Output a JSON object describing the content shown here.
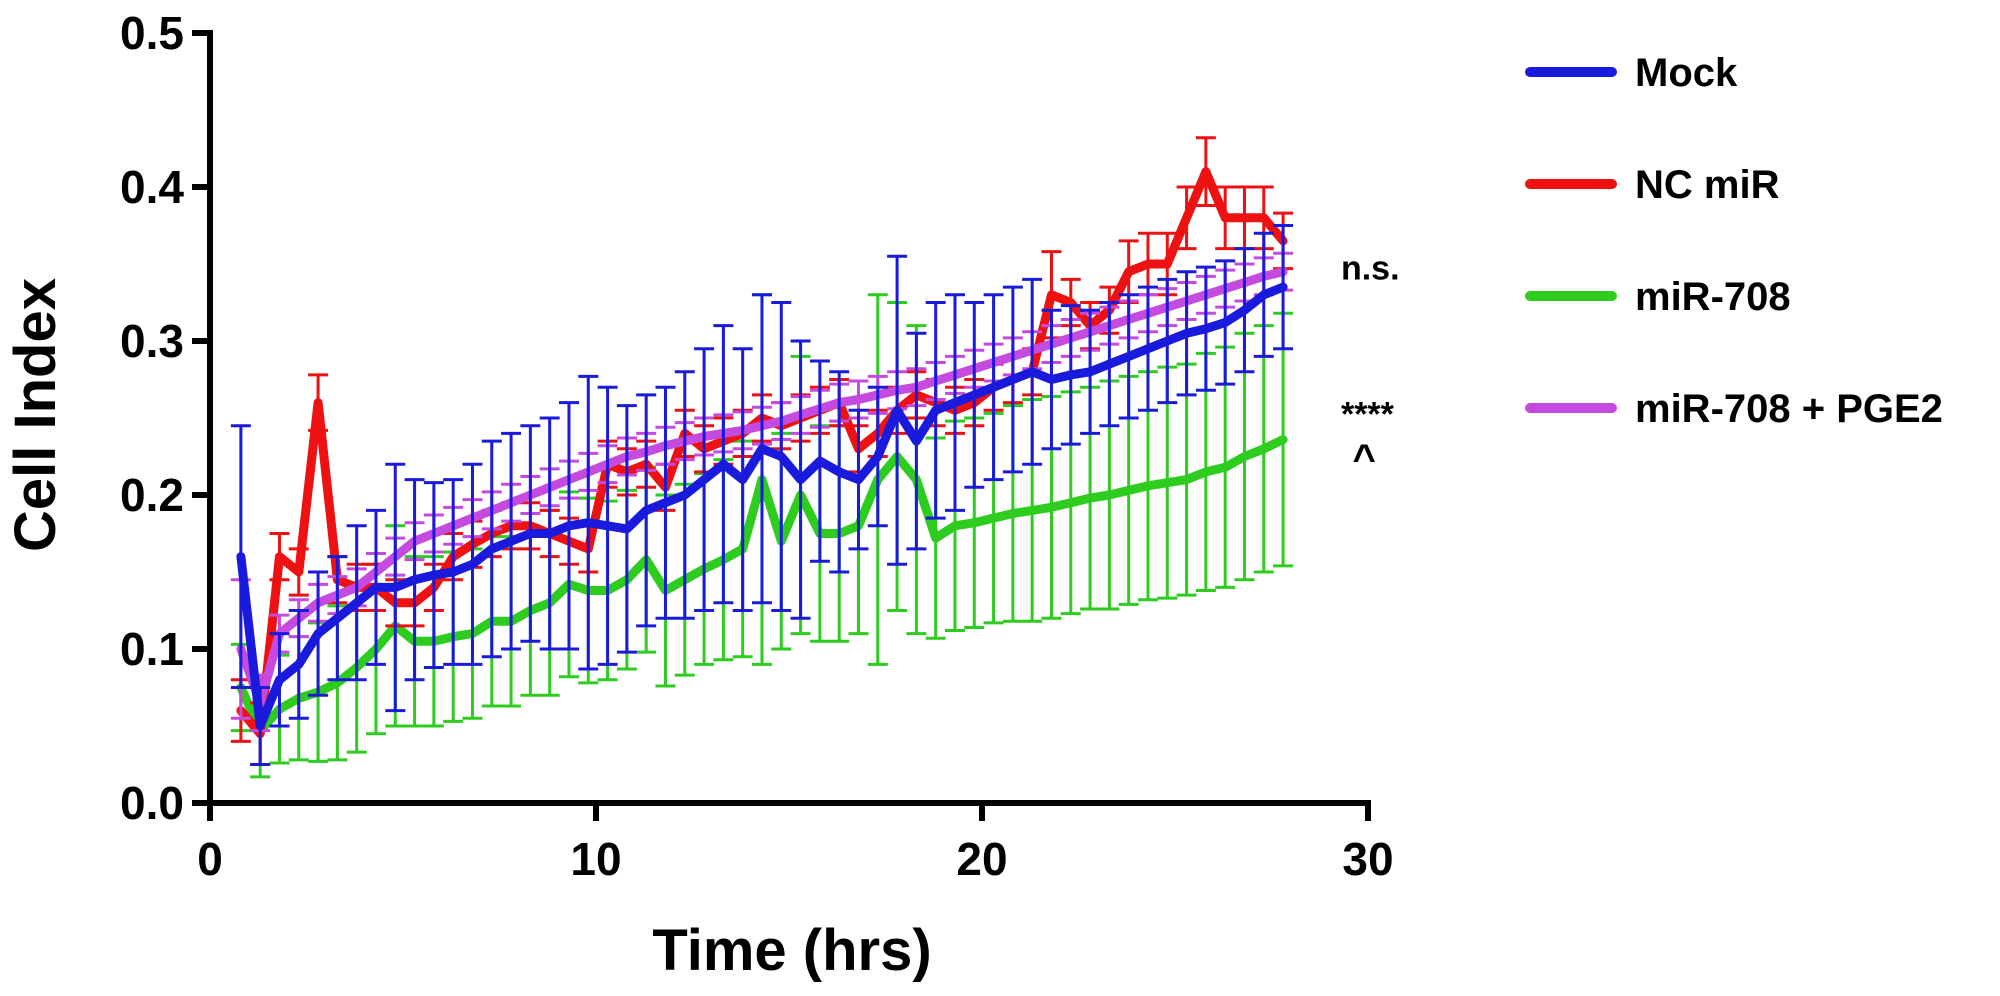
{
  "chart_data": {
    "type": "line",
    "xlabel": "Time (hrs)",
    "ylabel": "Cell Index",
    "xlim": [
      0,
      30
    ],
    "ylim": [
      0,
      0.5
    ],
    "xticks": [
      0,
      10,
      20,
      30
    ],
    "yticks": [
      0.0,
      0.1,
      0.2,
      0.3,
      0.4,
      0.5
    ],
    "ytick_labels": [
      "0.0",
      "0.1",
      "0.2",
      "0.3",
      "0.4",
      "0.5"
    ],
    "legend_position": "right",
    "grid": false,
    "series": [
      {
        "name": "miR-708",
        "color": "#2ecc1f",
        "err_dir": "both",
        "x": [
          0.8,
          1.3,
          1.8,
          2.3,
          2.8,
          3.3,
          3.8,
          4.3,
          4.8,
          5.3,
          5.8,
          6.3,
          6.8,
          7.3,
          7.8,
          8.3,
          8.8,
          9.3,
          9.8,
          10.3,
          10.8,
          11.3,
          11.8,
          12.3,
          12.8,
          13.3,
          13.8,
          14.3,
          14.8,
          15.3,
          15.8,
          16.3,
          16.8,
          17.3,
          17.8,
          18.3,
          18.8,
          19.3,
          19.8,
          20.3,
          20.8,
          21.3,
          21.8,
          22.3,
          22.8,
          23.3,
          23.8,
          24.3,
          24.8,
          25.3,
          25.8,
          26.3,
          26.8,
          27.3,
          27.8
        ],
        "y": [
          0.075,
          0.047,
          0.061,
          0.068,
          0.072,
          0.078,
          0.088,
          0.1,
          0.115,
          0.105,
          0.105,
          0.108,
          0.11,
          0.118,
          0.118,
          0.125,
          0.13,
          0.142,
          0.138,
          0.138,
          0.145,
          0.158,
          0.138,
          0.145,
          0.152,
          0.158,
          0.165,
          0.21,
          0.17,
          0.2,
          0.175,
          0.175,
          0.18,
          0.21,
          0.225,
          0.21,
          0.172,
          0.18,
          0.182,
          0.185,
          0.188,
          0.19,
          0.192,
          0.195,
          0.198,
          0.2,
          0.203,
          0.206,
          0.208,
          0.21,
          0.215,
          0.218,
          0.225,
          0.23,
          0.236
        ],
        "err": [
          0.028,
          0.03,
          0.035,
          0.04,
          0.045,
          0.05,
          0.055,
          0.055,
          0.065,
          0.055,
          0.055,
          0.055,
          0.055,
          0.055,
          0.055,
          0.055,
          0.06,
          0.06,
          0.06,
          0.058,
          0.058,
          0.06,
          0.062,
          0.062,
          0.062,
          0.065,
          0.07,
          0.12,
          0.07,
          0.09,
          0.07,
          0.07,
          0.07,
          0.12,
          0.1,
          0.1,
          0.065,
          0.068,
          0.068,
          0.068,
          0.07,
          0.072,
          0.072,
          0.072,
          0.072,
          0.074,
          0.074,
          0.074,
          0.075,
          0.075,
          0.077,
          0.078,
          0.08,
          0.08,
          0.082
        ]
      },
      {
        "name": "NC miR",
        "color": "#ee1111",
        "err_dir": "both",
        "x": [
          0.8,
          1.3,
          1.8,
          2.3,
          2.8,
          3.3,
          3.8,
          4.3,
          4.8,
          5.3,
          5.8,
          6.3,
          6.8,
          7.3,
          7.8,
          8.3,
          8.8,
          9.3,
          9.8,
          10.3,
          10.8,
          11.3,
          11.8,
          12.3,
          12.8,
          13.3,
          13.8,
          14.3,
          14.8,
          15.3,
          15.8,
          16.3,
          16.8,
          17.3,
          17.8,
          18.3,
          18.8,
          19.3,
          19.8,
          20.3,
          20.8,
          21.3,
          21.8,
          22.3,
          22.8,
          23.3,
          23.8,
          24.3,
          24.8,
          25.3,
          25.8,
          26.3,
          26.8,
          27.3,
          27.8
        ],
        "y": [
          0.06,
          0.045,
          0.16,
          0.15,
          0.26,
          0.145,
          0.14,
          0.14,
          0.13,
          0.13,
          0.14,
          0.16,
          0.168,
          0.175,
          0.18,
          0.18,
          0.175,
          0.17,
          0.165,
          0.22,
          0.215,
          0.22,
          0.205,
          0.24,
          0.23,
          0.235,
          0.24,
          0.25,
          0.245,
          0.25,
          0.255,
          0.26,
          0.23,
          0.24,
          0.255,
          0.265,
          0.26,
          0.255,
          0.26,
          0.27,
          0.275,
          0.28,
          0.33,
          0.325,
          0.31,
          0.32,
          0.345,
          0.35,
          0.35,
          0.38,
          0.41,
          0.38,
          0.38,
          0.38,
          0.365
        ],
        "err": [
          0.02,
          0.02,
          0.015,
          0.015,
          0.018,
          0.015,
          0.015,
          0.015,
          0.015,
          0.015,
          0.015,
          0.015,
          0.015,
          0.015,
          0.015,
          0.015,
          0.015,
          0.015,
          0.015,
          0.015,
          0.015,
          0.015,
          0.015,
          0.015,
          0.015,
          0.015,
          0.015,
          0.015,
          0.015,
          0.015,
          0.015,
          0.015,
          0.015,
          0.015,
          0.015,
          0.015,
          0.015,
          0.015,
          0.015,
          0.015,
          0.015,
          0.015,
          0.028,
          0.015,
          0.015,
          0.015,
          0.02,
          0.02,
          0.02,
          0.02,
          0.022,
          0.02,
          0.02,
          0.02,
          0.018
        ]
      },
      {
        "name": "miR-708 + PGE2",
        "color": "#c54ae0",
        "err_dir": "both",
        "x": [
          0.8,
          1.3,
          1.8,
          2.3,
          2.8,
          3.3,
          3.8,
          4.3,
          4.8,
          5.3,
          5.8,
          6.3,
          6.8,
          7.3,
          7.8,
          8.3,
          8.8,
          9.3,
          9.8,
          10.3,
          10.8,
          11.3,
          11.8,
          12.3,
          12.8,
          13.3,
          13.8,
          14.3,
          14.8,
          15.3,
          15.8,
          16.3,
          16.8,
          17.3,
          17.8,
          18.3,
          18.8,
          19.3,
          19.8,
          20.3,
          20.8,
          21.3,
          21.8,
          22.3,
          22.8,
          23.3,
          23.8,
          24.3,
          24.8,
          25.3,
          25.8,
          26.3,
          26.8,
          27.3,
          27.8
        ],
        "y": [
          0.1,
          0.065,
          0.11,
          0.12,
          0.13,
          0.135,
          0.14,
          0.15,
          0.16,
          0.17,
          0.175,
          0.18,
          0.185,
          0.19,
          0.195,
          0.2,
          0.205,
          0.21,
          0.215,
          0.22,
          0.225,
          0.228,
          0.232,
          0.235,
          0.238,
          0.24,
          0.242,
          0.245,
          0.248,
          0.252,
          0.256,
          0.26,
          0.262,
          0.265,
          0.268,
          0.27,
          0.274,
          0.278,
          0.282,
          0.286,
          0.29,
          0.294,
          0.298,
          0.302,
          0.306,
          0.31,
          0.314,
          0.318,
          0.322,
          0.326,
          0.33,
          0.334,
          0.338,
          0.342,
          0.345
        ],
        "err": [
          0.045,
          0.018,
          0.012,
          0.012,
          0.012,
          0.012,
          0.012,
          0.012,
          0.012,
          0.012,
          0.012,
          0.012,
          0.012,
          0.012,
          0.012,
          0.012,
          0.012,
          0.012,
          0.012,
          0.012,
          0.012,
          0.012,
          0.012,
          0.012,
          0.012,
          0.012,
          0.012,
          0.012,
          0.012,
          0.012,
          0.012,
          0.012,
          0.012,
          0.012,
          0.012,
          0.012,
          0.012,
          0.012,
          0.012,
          0.012,
          0.012,
          0.012,
          0.012,
          0.012,
          0.012,
          0.012,
          0.012,
          0.012,
          0.012,
          0.012,
          0.012,
          0.012,
          0.012,
          0.012,
          0.012
        ]
      },
      {
        "name": "Mock",
        "color": "#1a1adc",
        "err_dir": "both",
        "x": [
          0.8,
          1.3,
          1.8,
          2.3,
          2.8,
          3.3,
          3.8,
          4.3,
          4.8,
          5.3,
          5.8,
          6.3,
          6.8,
          7.3,
          7.8,
          8.3,
          8.8,
          9.3,
          9.8,
          10.3,
          10.8,
          11.3,
          11.8,
          12.3,
          12.8,
          13.3,
          13.8,
          14.3,
          14.8,
          15.3,
          15.8,
          16.3,
          16.8,
          17.3,
          17.8,
          18.3,
          18.8,
          19.3,
          19.8,
          20.3,
          20.8,
          21.3,
          21.8,
          22.3,
          22.8,
          23.3,
          23.8,
          24.3,
          24.8,
          25.3,
          25.8,
          26.3,
          26.8,
          27.3,
          27.8
        ],
        "y": [
          0.16,
          0.05,
          0.08,
          0.09,
          0.11,
          0.12,
          0.13,
          0.14,
          0.14,
          0.145,
          0.148,
          0.15,
          0.155,
          0.165,
          0.17,
          0.175,
          0.175,
          0.18,
          0.182,
          0.18,
          0.178,
          0.19,
          0.195,
          0.2,
          0.21,
          0.22,
          0.21,
          0.23,
          0.225,
          0.21,
          0.222,
          0.215,
          0.21,
          0.225,
          0.255,
          0.235,
          0.255,
          0.26,
          0.265,
          0.27,
          0.275,
          0.28,
          0.275,
          0.278,
          0.28,
          0.285,
          0.29,
          0.295,
          0.3,
          0.305,
          0.308,
          0.312,
          0.32,
          0.33,
          0.335
        ],
        "err": [
          0.085,
          0.025,
          0.03,
          0.035,
          0.04,
          0.04,
          0.05,
          0.05,
          0.08,
          0.065,
          0.06,
          0.06,
          0.065,
          0.07,
          0.07,
          0.07,
          0.075,
          0.08,
          0.095,
          0.09,
          0.08,
          0.075,
          0.075,
          0.08,
          0.085,
          0.09,
          0.085,
          0.1,
          0.1,
          0.09,
          0.065,
          0.065,
          0.045,
          0.045,
          0.1,
          0.07,
          0.07,
          0.07,
          0.06,
          0.06,
          0.06,
          0.06,
          0.045,
          0.045,
          0.04,
          0.04,
          0.04,
          0.04,
          0.04,
          0.04,
          0.04,
          0.04,
          0.04,
          0.04,
          0.04
        ]
      }
    ],
    "legend": [
      {
        "name": "Mock",
        "color": "#1a1adc"
      },
      {
        "name": "NC miR",
        "color": "#ee1111"
      },
      {
        "name": "miR-708",
        "color": "#2ecc1f"
      },
      {
        "name": "miR-708 + PGE2",
        "color": "#c54ae0"
      }
    ],
    "annotations": [
      {
        "text": "n.s.",
        "x": 29.3,
        "y": 0.34
      },
      {
        "text": "****",
        "x": 29.3,
        "y": 0.245
      },
      {
        "text": "^",
        "x": 29.6,
        "y": 0.215
      }
    ]
  }
}
